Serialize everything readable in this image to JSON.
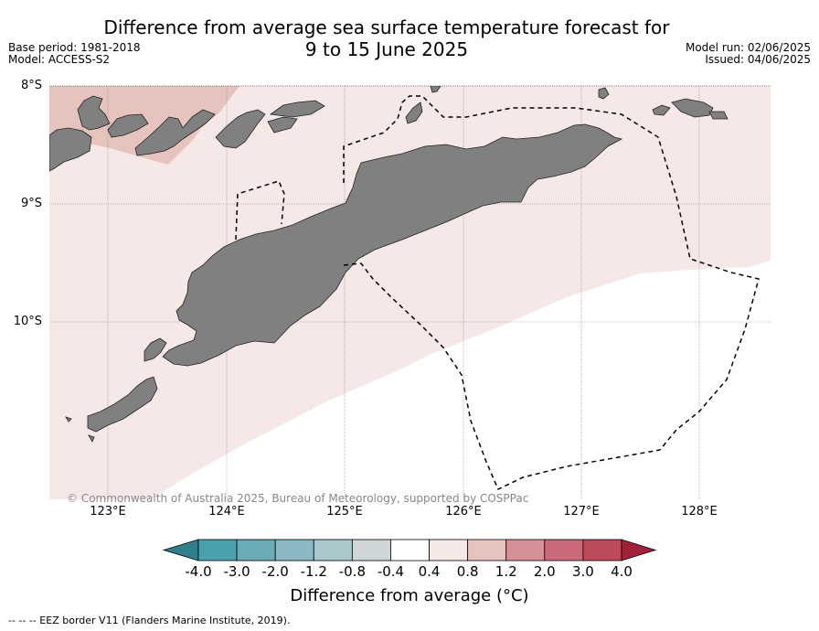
{
  "title_line1": "Difference from average sea surface temperature forecast for",
  "title_line2": "9 to 15 June 2025",
  "base_period": "Base period: 1981-2018",
  "model": "Model: ACCESS-S2",
  "model_run": "Model run: 02/06/2025",
  "issued": "Issued: 04/06/2025",
  "lat_labels": [
    "8°S",
    "9°S",
    "10°S"
  ],
  "lon_labels": [
    "123°E",
    "124°E",
    "125°E",
    "126°E",
    "127°E",
    "128°E"
  ],
  "copyright": "© Commonwealth of Australia 2025, Bureau of Meteorology, supported by COSPPac",
  "colorbar": {
    "labels": [
      "-4.0",
      "-3.0",
      "-2.0",
      "-1.2",
      "-0.8",
      "-0.4",
      "0.4",
      "0.8",
      "1.2",
      "2.0",
      "3.0",
      "4.0"
    ],
    "colors": [
      "#2f7f8c",
      "#4aa1ad",
      "#6aabb6",
      "#8bb8c2",
      "#aac7cc",
      "#cfd6d8",
      "#ffffff",
      "#f5e8e6",
      "#e6c4bd",
      "#d68f94",
      "#c9697a",
      "#bd4a5b",
      "#a3203a"
    ],
    "title": "Difference from average (°C)"
  },
  "legend": {
    "footnote": "--  --  -- EEZ border V11 (Flanders Marine Institute, 2019)."
  },
  "map_colors": {
    "land": "#808080",
    "anomaly_0_4_0_8": "#f5e8e6",
    "anomaly_0_8_1_2": "#e6c4bd"
  }
}
